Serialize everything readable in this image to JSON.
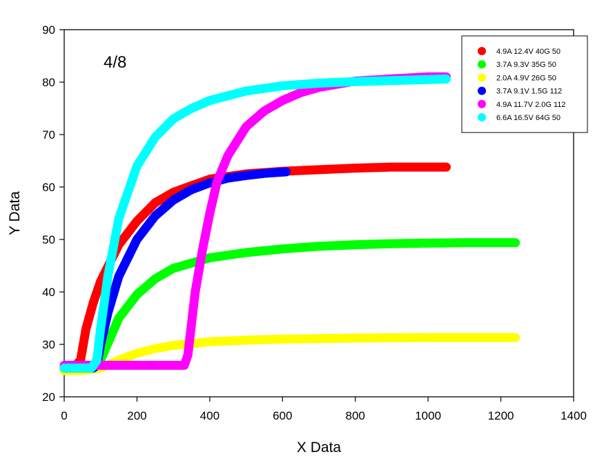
{
  "chart_data": {
    "type": "line",
    "xlabel": "X Data",
    "ylabel": "Y Data",
    "xlim": [
      0,
      1400
    ],
    "ylim": [
      20,
      90
    ],
    "xticks": [
      0,
      200,
      400,
      600,
      800,
      1000,
      1200,
      1400
    ],
    "yticks": [
      20,
      30,
      40,
      50,
      60,
      70,
      80,
      90
    ],
    "grid": false,
    "legend_position": "top-right",
    "annotation": "4/8",
    "series": [
      {
        "name": "4.9A 12.4V 40G 50",
        "color": "#ff0000",
        "x": [
          0,
          25,
          45,
          60,
          80,
          100,
          150,
          200,
          250,
          300,
          400,
          500,
          600,
          700,
          800,
          900,
          1000,
          1050
        ],
        "y": [
          25.5,
          25.5,
          27,
          33,
          38,
          42,
          49,
          53.5,
          57,
          59,
          61.5,
          62.5,
          63,
          63.3,
          63.6,
          63.8,
          63.8,
          63.8
        ]
      },
      {
        "name": "3.7A 9.3V 35G 50",
        "color": "#00ff00",
        "x": [
          0,
          80,
          100,
          150,
          200,
          250,
          300,
          400,
          500,
          600,
          700,
          800,
          900,
          1000,
          1100,
          1240
        ],
        "y": [
          25.5,
          25.5,
          27,
          35,
          39.5,
          42.5,
          44.5,
          46.5,
          47.5,
          48.2,
          48.7,
          49,
          49.2,
          49.3,
          49.4,
          49.4
        ]
      },
      {
        "name": "2.0A 4.9V 26G 50",
        "color": "#ffff00",
        "x": [
          0,
          50,
          100,
          150,
          200,
          250,
          300,
          400,
          500,
          600,
          800,
          1000,
          1240
        ],
        "y": [
          25,
          25,
          25.5,
          27,
          28.3,
          29.2,
          29.8,
          30.5,
          30.8,
          31,
          31.2,
          31.3,
          31.3
        ]
      },
      {
        "name": "3.7A 9.1V 1.5G 112",
        "color": "#0000ff",
        "x": [
          0,
          80,
          90,
          100,
          120,
          150,
          200,
          250,
          300,
          350,
          400,
          450,
          500,
          550,
          610
        ],
        "y": [
          25.5,
          25.5,
          26,
          30,
          36,
          43,
          50,
          54.5,
          57.5,
          59.5,
          60.8,
          61.7,
          62.2,
          62.6,
          62.9
        ]
      },
      {
        "name": "4.9A 11.7V 2.0G 112",
        "color": "#ff00ff",
        "x": [
          0,
          330,
          340,
          360,
          380,
          400,
          420,
          450,
          500,
          550,
          600,
          650,
          700,
          800,
          900,
          1000,
          1050
        ],
        "y": [
          26,
          26,
          28,
          40,
          48,
          55,
          61,
          66,
          71.5,
          74.5,
          76.5,
          78,
          79,
          80.2,
          80.6,
          81,
          81
        ]
      },
      {
        "name": "6.6A 16.5V 64G 50",
        "color": "#00ffff",
        "x": [
          0,
          75,
          90,
          100,
          120,
          150,
          200,
          250,
          300,
          350,
          400,
          500,
          600,
          700,
          800,
          900,
          1000,
          1050
        ],
        "y": [
          25.5,
          25.5,
          27,
          33,
          43,
          54,
          64,
          69.5,
          73,
          75,
          76.5,
          78.3,
          79.3,
          79.8,
          80.1,
          80.3,
          80.5,
          80.6
        ]
      }
    ]
  }
}
